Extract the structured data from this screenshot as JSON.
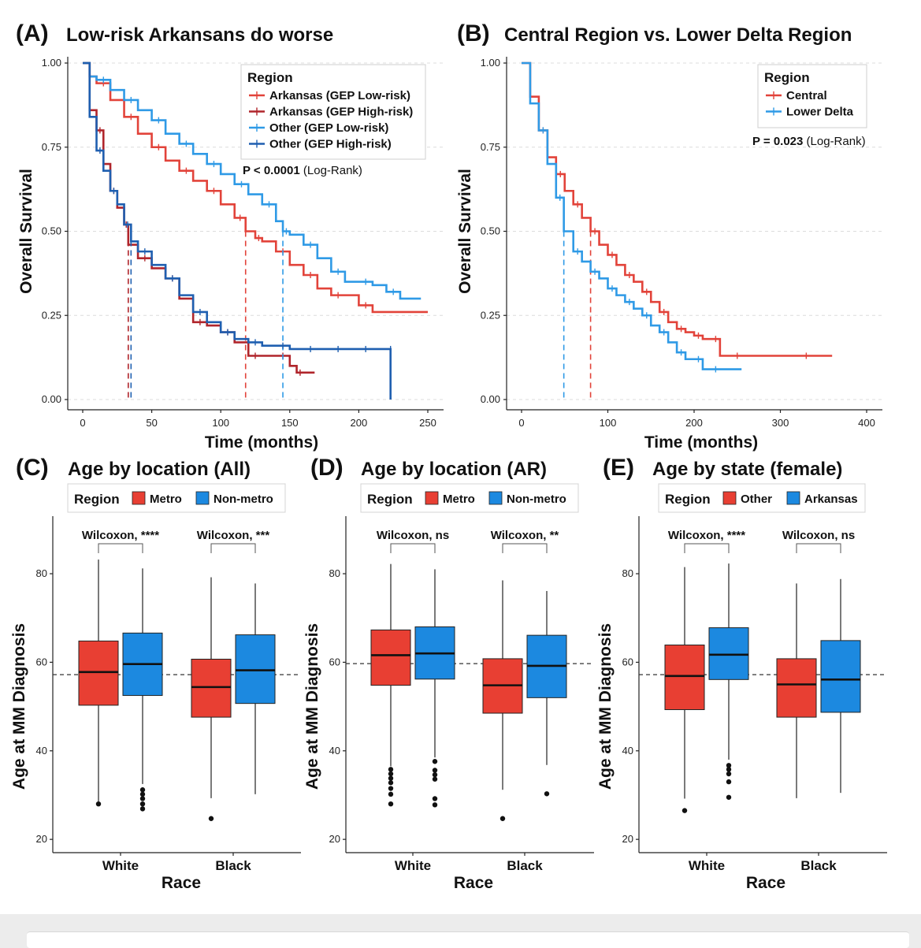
{
  "colors": {
    "ar_low": "#e2433a",
    "ar_high": "#b0252b",
    "oth_low": "#2f9ae6",
    "oth_high": "#1f5fb0",
    "central": "#e2433a",
    "lower_delta": "#2f9ae6",
    "box_red": "#e83f33",
    "box_blue": "#1c89e0"
  },
  "chart_data": [
    {
      "id": "A",
      "type": "line",
      "subtype": "kaplan-meier",
      "letter": "(A)",
      "title": "Low-risk Arkansans do worse",
      "xlabel": "Time (months)",
      "ylabel": "Overall Survival",
      "xlim": [
        0,
        250
      ],
      "ylim": [
        0,
        1
      ],
      "xticks": [
        0,
        50,
        100,
        150,
        200,
        250
      ],
      "yticks": [
        0,
        0.25,
        0.5,
        0.75,
        1
      ],
      "ytick_labels": [
        "0.00",
        "0.25",
        "0.50",
        "0.75",
        "1.00"
      ],
      "grid": true,
      "legend_title": "Region",
      "pvalue_bold": "P < 0.0001",
      "pvalue_rest": "(Log-Rank)",
      "series": [
        {
          "name": "Arkansas (GEP Low-risk)",
          "color_key": "ar_low",
          "median": 118,
          "x": [
            0,
            5,
            10,
            20,
            30,
            40,
            50,
            60,
            70,
            80,
            90,
            100,
            110,
            118,
            125,
            130,
            140,
            150,
            160,
            170,
            180,
            190,
            200,
            210,
            250
          ],
          "y": [
            1,
            0.96,
            0.94,
            0.89,
            0.84,
            0.79,
            0.75,
            0.71,
            0.68,
            0.65,
            0.62,
            0.58,
            0.54,
            0.5,
            0.48,
            0.47,
            0.44,
            0.4,
            0.37,
            0.33,
            0.31,
            0.31,
            0.28,
            0.26,
            0.26
          ]
        },
        {
          "name": "Arkansas (GEP High-risk)",
          "color_key": "ar_high",
          "median": 33,
          "x": [
            0,
            5,
            10,
            15,
            20,
            25,
            30,
            33,
            40,
            50,
            60,
            70,
            80,
            90,
            100,
            110,
            120,
            130,
            140,
            150,
            155,
            160,
            168
          ],
          "y": [
            1,
            0.86,
            0.8,
            0.7,
            0.62,
            0.57,
            0.52,
            0.46,
            0.42,
            0.39,
            0.36,
            0.3,
            0.23,
            0.22,
            0.2,
            0.17,
            0.13,
            0.13,
            0.13,
            0.1,
            0.08,
            0.08,
            0.08
          ]
        },
        {
          "name": "Other (GEP Low-risk)",
          "color_key": "oth_low",
          "median": 145,
          "x": [
            0,
            5,
            10,
            20,
            30,
            40,
            50,
            60,
            70,
            80,
            90,
            100,
            110,
            120,
            130,
            140,
            145,
            150,
            160,
            170,
            180,
            190,
            200,
            210,
            220,
            230,
            245
          ],
          "y": [
            1,
            0.96,
            0.95,
            0.92,
            0.89,
            0.86,
            0.83,
            0.79,
            0.76,
            0.73,
            0.7,
            0.67,
            0.64,
            0.61,
            0.58,
            0.53,
            0.5,
            0.49,
            0.46,
            0.42,
            0.38,
            0.35,
            0.35,
            0.34,
            0.32,
            0.3,
            0.3
          ]
        },
        {
          "name": "Other (GEP High-risk)",
          "color_key": "oth_high",
          "median": 35,
          "x": [
            0,
            5,
            10,
            15,
            20,
            25,
            30,
            35,
            40,
            50,
            60,
            70,
            80,
            90,
            100,
            110,
            120,
            130,
            140,
            150,
            160,
            170,
            180,
            190,
            200,
            210,
            223,
            223
          ],
          "y": [
            1,
            0.84,
            0.74,
            0.68,
            0.62,
            0.58,
            0.52,
            0.47,
            0.44,
            0.4,
            0.36,
            0.31,
            0.26,
            0.23,
            0.2,
            0.18,
            0.17,
            0.16,
            0.16,
            0.15,
            0.15,
            0.15,
            0.15,
            0.15,
            0.15,
            0.15,
            0.15,
            0
          ]
        }
      ]
    },
    {
      "id": "B",
      "type": "line",
      "subtype": "kaplan-meier",
      "letter": "(B)",
      "title": "Central Region vs. Lower Delta Region",
      "xlabel": "Time (months)",
      "ylabel": "Overall Survival",
      "xlim": [
        0,
        400
      ],
      "ylim": [
        0,
        1
      ],
      "xticks": [
        0,
        100,
        200,
        300,
        400
      ],
      "yticks": [
        0,
        0.25,
        0.5,
        0.75,
        1
      ],
      "ytick_labels": [
        "0.00",
        "0.25",
        "0.50",
        "0.75",
        "1.00"
      ],
      "grid": true,
      "legend_title": "Region",
      "pvalue_bold": "P = 0.023",
      "pvalue_rest": "(Log-Rank)",
      "series": [
        {
          "name": "Central",
          "color_key": "central",
          "median": 80,
          "x": [
            0,
            10,
            20,
            30,
            40,
            50,
            60,
            70,
            80,
            90,
            100,
            110,
            120,
            130,
            140,
            150,
            160,
            170,
            180,
            190,
            200,
            210,
            220,
            230,
            240,
            260,
            300,
            360
          ],
          "y": [
            1,
            0.9,
            0.8,
            0.72,
            0.67,
            0.62,
            0.58,
            0.54,
            0.5,
            0.46,
            0.43,
            0.4,
            0.37,
            0.35,
            0.32,
            0.29,
            0.26,
            0.23,
            0.21,
            0.2,
            0.19,
            0.18,
            0.18,
            0.13,
            0.13,
            0.13,
            0.13,
            0.13
          ]
        },
        {
          "name": "Lower Delta",
          "color_key": "lower_delta",
          "median": 49,
          "x": [
            0,
            10,
            20,
            30,
            40,
            49,
            60,
            70,
            80,
            90,
            100,
            110,
            120,
            130,
            140,
            150,
            160,
            170,
            180,
            190,
            200,
            210,
            220,
            230,
            255
          ],
          "y": [
            1,
            0.88,
            0.8,
            0.7,
            0.6,
            0.5,
            0.44,
            0.41,
            0.38,
            0.36,
            0.33,
            0.31,
            0.29,
            0.27,
            0.25,
            0.22,
            0.2,
            0.17,
            0.14,
            0.12,
            0.12,
            0.09,
            0.09,
            0.09,
            0.09
          ]
        }
      ]
    },
    {
      "id": "C",
      "type": "boxplot",
      "letter": "(C)",
      "title": "Age by location (All)",
      "xlabel": "Race",
      "ylabel": "Age at MM Diagnosis",
      "ylim": [
        17,
        93
      ],
      "yticks": [
        20,
        40,
        60,
        80
      ],
      "reference_line": 57.2,
      "legend_title": "Region",
      "legend_items": [
        "Metro",
        "Non-metro"
      ],
      "categories": [
        "White",
        "Black"
      ],
      "comparisons": [
        "Wilcoxon, ****",
        "Wilcoxon, ***"
      ],
      "boxes": [
        {
          "category": "White",
          "group": "Metro",
          "color_key": "box_red",
          "whisker_low": 28.5,
          "q1": 50.3,
          "median": 57.8,
          "q3": 64.8,
          "whisker_high": 83.2,
          "outliers": [
            28.0
          ]
        },
        {
          "category": "White",
          "group": "Non-metro",
          "color_key": "box_blue",
          "whisker_low": 32.5,
          "q1": 52.5,
          "median": 59.6,
          "q3": 66.6,
          "whisker_high": 81.2,
          "outliers": [
            31.2,
            30.2,
            29.2,
            28.0,
            26.9
          ]
        },
        {
          "category": "Black",
          "group": "Metro",
          "color_key": "box_red",
          "whisker_low": 29.3,
          "q1": 47.6,
          "median": 54.4,
          "q3": 60.7,
          "whisker_high": 79.2,
          "outliers": [
            24.7
          ]
        },
        {
          "category": "Black",
          "group": "Non-metro",
          "color_key": "box_blue",
          "whisker_low": 30.2,
          "q1": 50.7,
          "median": 58.2,
          "q3": 66.2,
          "whisker_high": 77.8,
          "outliers": []
        }
      ]
    },
    {
      "id": "D",
      "type": "boxplot",
      "letter": "(D)",
      "title": "Age by location (AR)",
      "xlabel": "Race",
      "ylabel": "Age at MM Diagnosis",
      "ylim": [
        17,
        93
      ],
      "yticks": [
        20,
        40,
        60,
        80
      ],
      "reference_line": 59.7,
      "legend_title": "Region",
      "legend_items": [
        "Metro",
        "Non-metro"
      ],
      "categories": [
        "White",
        "Black"
      ],
      "comparisons": [
        "Wilcoxon, ns",
        "Wilcoxon, **"
      ],
      "boxes": [
        {
          "category": "White",
          "group": "Metro",
          "color_key": "box_red",
          "whisker_low": 36.5,
          "q1": 54.8,
          "median": 61.6,
          "q3": 67.3,
          "whisker_high": 82.2,
          "outliers": [
            35.8,
            34.8,
            33.8,
            32.8,
            31.5,
            30.2,
            28.0
          ]
        },
        {
          "category": "White",
          "group": "Non-metro",
          "color_key": "box_blue",
          "whisker_low": 38.5,
          "q1": 56.2,
          "median": 62.0,
          "q3": 68.0,
          "whisker_high": 81.0,
          "outliers": [
            37.6,
            35.6,
            34.6,
            33.6,
            29.2,
            27.8
          ]
        },
        {
          "category": "Black",
          "group": "Metro",
          "color_key": "box_red",
          "whisker_low": 31.2,
          "q1": 48.5,
          "median": 54.8,
          "q3": 60.8,
          "whisker_high": 78.5,
          "outliers": [
            24.7
          ]
        },
        {
          "category": "Black",
          "group": "Non-metro",
          "color_key": "box_blue",
          "whisker_low": 36.8,
          "q1": 52.0,
          "median": 59.2,
          "q3": 66.1,
          "whisker_high": 76.1,
          "outliers": [
            30.3
          ]
        }
      ]
    },
    {
      "id": "E",
      "type": "boxplot",
      "letter": "(E)",
      "title": "Age by state (female)",
      "xlabel": "Race",
      "ylabel": "Age at MM Diagnosis",
      "ylim": [
        17,
        93
      ],
      "yticks": [
        20,
        40,
        60,
        80
      ],
      "reference_line": 57.2,
      "legend_title": "Region",
      "legend_items": [
        "Other",
        "Arkansas"
      ],
      "categories": [
        "White",
        "Black"
      ],
      "comparisons": [
        "Wilcoxon, ****",
        "Wilcoxon, ns"
      ],
      "boxes": [
        {
          "category": "White",
          "group": "Other",
          "color_key": "box_red",
          "whisker_low": 29.2,
          "q1": 49.3,
          "median": 56.9,
          "q3": 63.9,
          "whisker_high": 81.5,
          "outliers": [
            26.5
          ]
        },
        {
          "category": "White",
          "group": "Arkansas",
          "color_key": "box_blue",
          "whisker_low": 38.0,
          "q1": 56.1,
          "median": 61.7,
          "q3": 67.8,
          "whisker_high": 82.3,
          "outliers": [
            36.7,
            35.8,
            34.8,
            33.0,
            29.5
          ]
        },
        {
          "category": "Black",
          "group": "Other",
          "color_key": "box_red",
          "whisker_low": 29.3,
          "q1": 47.6,
          "median": 55.0,
          "q3": 60.8,
          "whisker_high": 77.8,
          "outliers": []
        },
        {
          "category": "Black",
          "group": "Arkansas",
          "color_key": "box_blue",
          "whisker_low": 30.5,
          "q1": 48.7,
          "median": 56.1,
          "q3": 64.9,
          "whisker_high": 78.8,
          "outliers": []
        }
      ]
    }
  ]
}
